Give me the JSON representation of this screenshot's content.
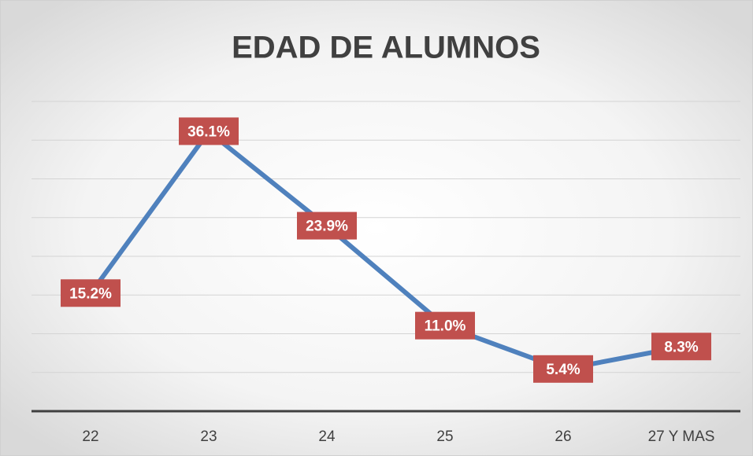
{
  "chart_data": {
    "type": "line",
    "title": "EDAD DE ALUMNOS",
    "categories": [
      "22",
      "23",
      "24",
      "25",
      "26",
      "27 Y MAS"
    ],
    "values": [
      15.2,
      36.1,
      23.9,
      11.0,
      5.4,
      8.3
    ],
    "value_labels": [
      "15.2%",
      "36.1%",
      "23.9%",
      "11.0%",
      "5.4%",
      "8.3%"
    ],
    "color": "#4f81bd",
    "label_color": "#c0504d",
    "ylim": [
      0,
      40
    ],
    "yticks": [
      0,
      5,
      10,
      15,
      20,
      25,
      30,
      35,
      40
    ],
    "grid": true
  }
}
